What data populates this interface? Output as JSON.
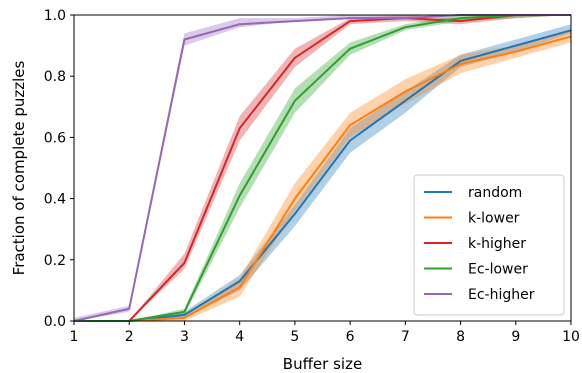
{
  "chart_data": {
    "type": "line",
    "title": "",
    "xlabel": "Buffer size",
    "ylabel": "Fraction of complete puzzles",
    "xlim": [
      1,
      10
    ],
    "ylim": [
      0,
      1.0
    ],
    "x_ticks": [
      "1",
      "2",
      "3",
      "4",
      "5",
      "6",
      "7",
      "8",
      "9",
      "10"
    ],
    "y_ticks": [
      "0.0",
      "0.2",
      "0.4",
      "0.6",
      "0.8",
      "1.0"
    ],
    "grid": false,
    "legend_position": "lower-right",
    "x": [
      1,
      2,
      3,
      4,
      5,
      6,
      7,
      8,
      9,
      10
    ],
    "series": [
      {
        "name": "random",
        "color": "#1f77b4",
        "values": [
          0,
          0,
          0.02,
          0.13,
          0.35,
          0.59,
          0.72,
          0.85,
          0.9,
          0.95
        ],
        "lower": [
          0,
          0,
          0.01,
          0.1,
          0.31,
          0.55,
          0.68,
          0.83,
          0.88,
          0.94
        ],
        "upper": [
          0,
          0,
          0.03,
          0.15,
          0.38,
          0.63,
          0.75,
          0.87,
          0.92,
          0.97
        ]
      },
      {
        "name": "k-lower",
        "color": "#ff7f0e",
        "values": [
          0,
          0,
          0.01,
          0.11,
          0.4,
          0.64,
          0.75,
          0.84,
          0.88,
          0.93
        ],
        "lower": [
          0,
          0,
          0.0,
          0.08,
          0.36,
          0.6,
          0.71,
          0.81,
          0.86,
          0.91
        ],
        "upper": [
          0,
          0,
          0.02,
          0.14,
          0.45,
          0.68,
          0.79,
          0.87,
          0.9,
          0.95
        ]
      },
      {
        "name": "k-higher",
        "color": "#d62728",
        "values": [
          0,
          0,
          0.19,
          0.63,
          0.86,
          0.98,
          0.99,
          0.98,
          1.0,
          1.0
        ],
        "lower": [
          0,
          0,
          0.17,
          0.59,
          0.83,
          0.97,
          0.98,
          0.97,
          0.99,
          1.0
        ],
        "upper": [
          0,
          0,
          0.22,
          0.67,
          0.89,
          0.99,
          1.0,
          0.99,
          1.0,
          1.0
        ]
      },
      {
        "name": "Ec-lower",
        "color": "#2ca02c",
        "values": [
          0,
          0,
          0.03,
          0.41,
          0.72,
          0.89,
          0.96,
          0.99,
          1.0,
          1.0
        ],
        "lower": [
          0,
          0,
          0.02,
          0.37,
          0.68,
          0.87,
          0.95,
          0.98,
          0.99,
          1.0
        ],
        "upper": [
          0,
          0,
          0.04,
          0.45,
          0.76,
          0.91,
          0.97,
          1.0,
          1.0,
          1.0
        ]
      },
      {
        "name": "Ec-higher",
        "color": "#9467bd",
        "values": [
          0,
          0.04,
          0.92,
          0.97,
          0.98,
          0.99,
          0.99,
          1.0,
          1.0,
          1.0
        ],
        "lower": [
          0,
          0.03,
          0.9,
          0.96,
          0.98,
          0.99,
          0.99,
          1.0,
          1.0,
          1.0
        ],
        "upper": [
          0.01,
          0.05,
          0.94,
          0.99,
          0.99,
          1.0,
          1.0,
          1.0,
          1.0,
          1.0
        ]
      }
    ]
  }
}
